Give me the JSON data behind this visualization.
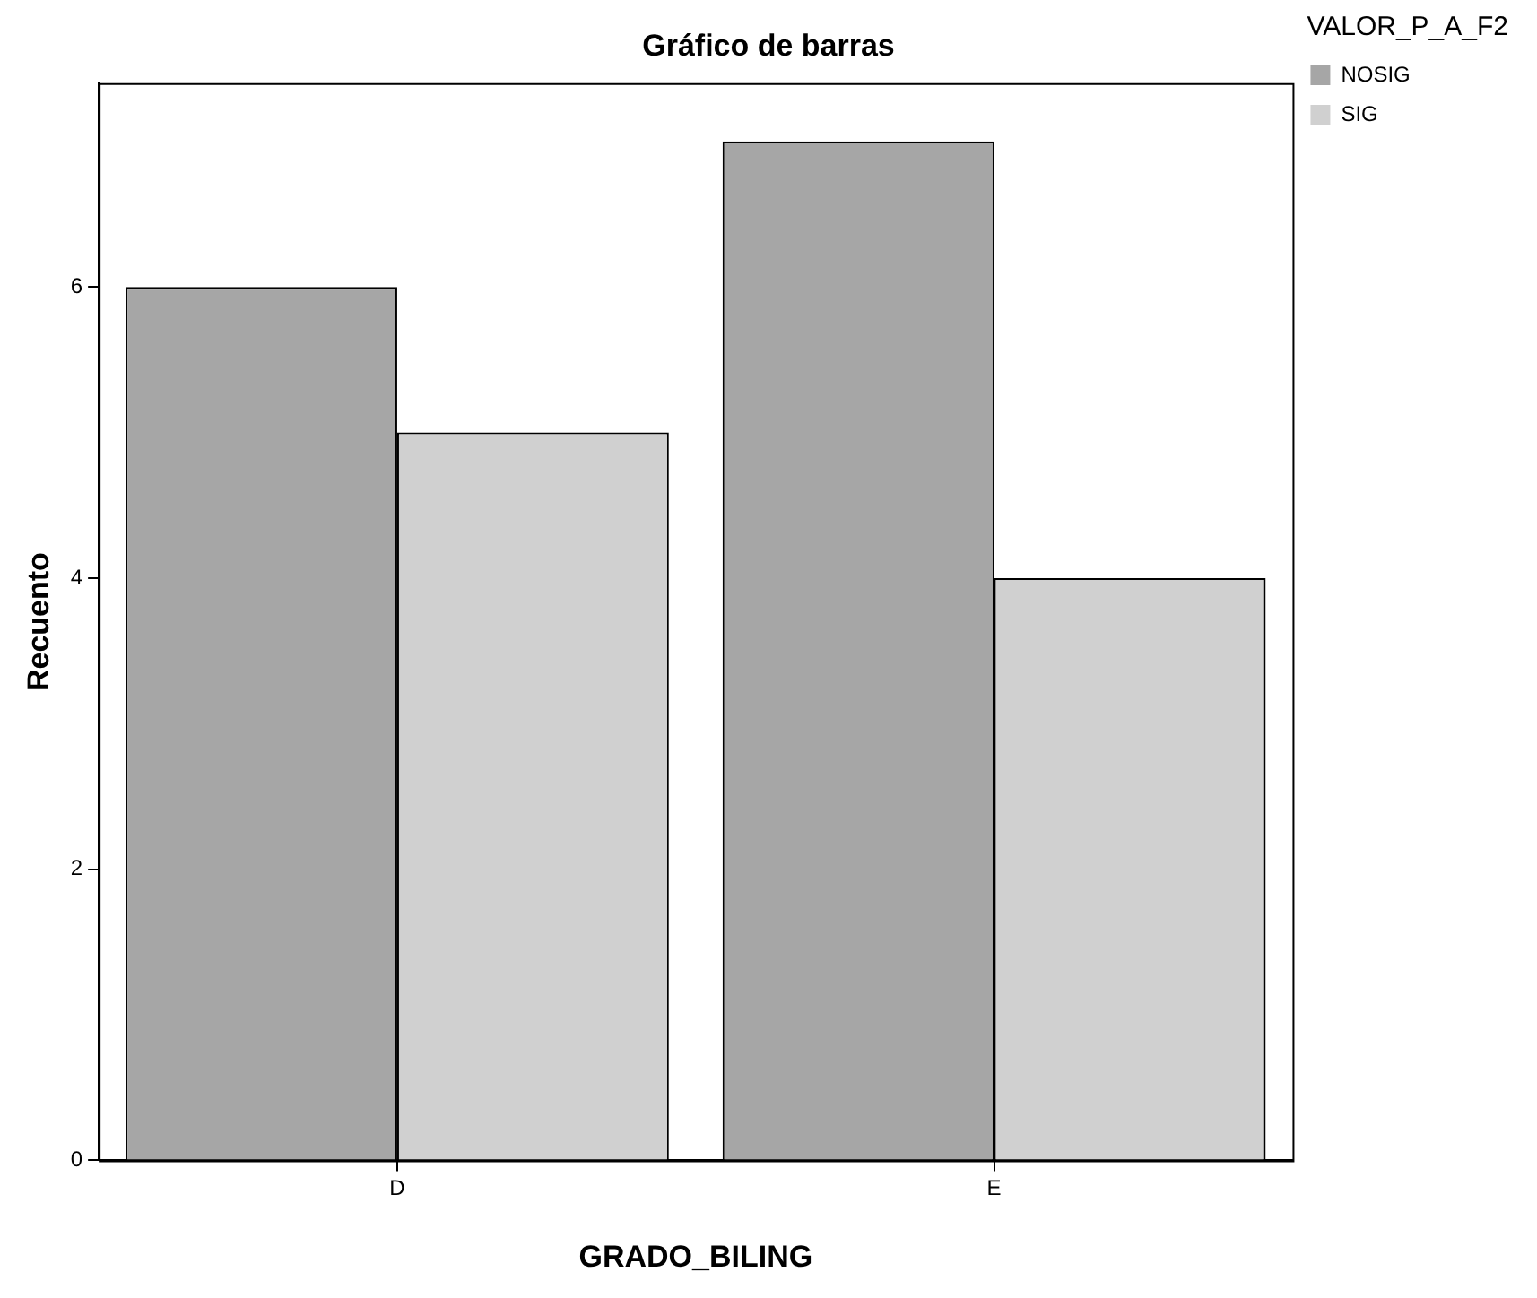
{
  "chart_data": {
    "type": "bar",
    "title": "Gráfico de barras",
    "xlabel": "GRADO_BILING",
    "ylabel": "Recuento",
    "legend_title": "VALOR_P_A_F2",
    "categories": [
      "D",
      "E"
    ],
    "series": [
      {
        "name": "NOSIG",
        "color": "#a6a6a6",
        "values": [
          6,
          7
        ]
      },
      {
        "name": "SIG",
        "color": "#d0d0d0",
        "values": [
          5,
          4
        ]
      }
    ],
    "ylim": [
      0,
      7.4
    ],
    "yticks": [
      0,
      2,
      4,
      6
    ],
    "grid": false,
    "legend": "top right"
  }
}
